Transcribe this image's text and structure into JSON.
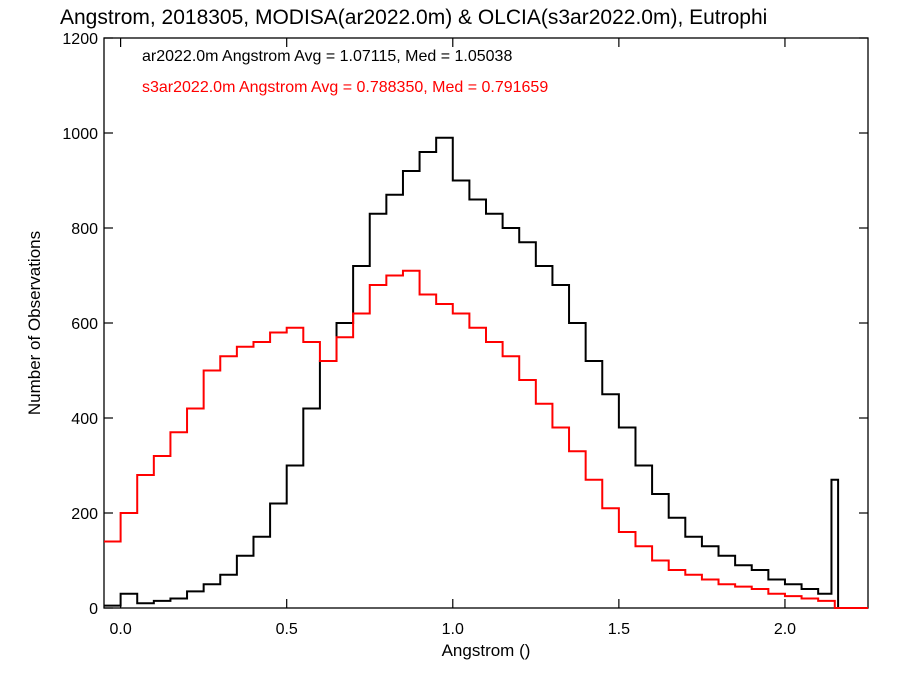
{
  "chart_data": {
    "type": "histogram",
    "title": "Angstrom, 2018305, MODISA(ar2022.0m) & OLCIA(s3ar2022.0m), Eutrophi",
    "xlabel": "Angstrom ()",
    "ylabel": "Number of Observations",
    "xlim": [
      -0.05,
      2.25
    ],
    "ylim": [
      0,
      1200
    ],
    "x_ticks": [
      0.0,
      0.5,
      1.0,
      1.5,
      2.0
    ],
    "x_tick_labels": [
      "0.0",
      "0.5",
      "1.0",
      "1.5",
      "2.0"
    ],
    "y_ticks": [
      0,
      200,
      400,
      600,
      800,
      1000,
      1200
    ],
    "y_tick_labels": [
      "0",
      "200",
      "400",
      "600",
      "800",
      "1000",
      "1200"
    ],
    "grid": false,
    "series": [
      {
        "name": "ar2022.0m",
        "legend": "ar2022.0m Angstrom Avg = 1.07115, Med = 1.05038",
        "color": "#000000",
        "step": "post",
        "x": [
          -0.05,
          0.0,
          0.05,
          0.1,
          0.15,
          0.2,
          0.25,
          0.3,
          0.35,
          0.4,
          0.45,
          0.5,
          0.55,
          0.6,
          0.65,
          0.7,
          0.75,
          0.8,
          0.85,
          0.9,
          0.95,
          1.0,
          1.05,
          1.1,
          1.15,
          1.2,
          1.25,
          1.3,
          1.35,
          1.4,
          1.45,
          1.5,
          1.55,
          1.6,
          1.65,
          1.7,
          1.75,
          1.8,
          1.85,
          1.9,
          1.95,
          2.0,
          2.05,
          2.1,
          2.14,
          2.16,
          2.25
        ],
        "values": [
          5,
          30,
          10,
          15,
          20,
          35,
          50,
          70,
          110,
          150,
          220,
          300,
          420,
          520,
          600,
          720,
          830,
          870,
          920,
          960,
          990,
          900,
          860,
          830,
          800,
          770,
          720,
          680,
          600,
          520,
          450,
          380,
          300,
          240,
          190,
          150,
          130,
          110,
          90,
          80,
          60,
          50,
          40,
          30,
          270,
          0,
          0
        ]
      },
      {
        "name": "s3ar2022.0m",
        "legend": "s3ar2022.0m Angstrom Avg = 0.788350, Med = 0.791659",
        "color": "#ff0000",
        "step": "post",
        "x": [
          -0.05,
          0.0,
          0.05,
          0.1,
          0.15,
          0.2,
          0.25,
          0.3,
          0.35,
          0.4,
          0.45,
          0.5,
          0.55,
          0.6,
          0.65,
          0.7,
          0.75,
          0.8,
          0.85,
          0.9,
          0.95,
          1.0,
          1.05,
          1.1,
          1.15,
          1.2,
          1.25,
          1.3,
          1.35,
          1.4,
          1.45,
          1.5,
          1.55,
          1.6,
          1.65,
          1.7,
          1.75,
          1.8,
          1.85,
          1.9,
          1.95,
          2.0,
          2.05,
          2.1,
          2.15,
          2.25
        ],
        "values": [
          140,
          200,
          280,
          320,
          370,
          420,
          500,
          530,
          550,
          560,
          580,
          590,
          560,
          520,
          570,
          620,
          680,
          700,
          710,
          660,
          640,
          620,
          590,
          560,
          530,
          480,
          430,
          380,
          330,
          270,
          210,
          160,
          130,
          100,
          80,
          70,
          60,
          50,
          45,
          40,
          30,
          25,
          20,
          15,
          0,
          0
        ]
      }
    ]
  }
}
